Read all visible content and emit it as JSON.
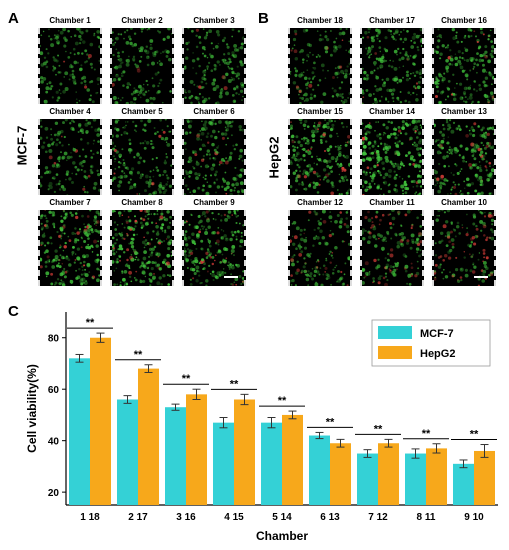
{
  "panels": {
    "a": {
      "letter": "A",
      "side_label": "MCF-7",
      "chambers": [
        "Chamber 1",
        "Chamber 2",
        "Chamber 3",
        "Chamber 4",
        "Chamber 5",
        "Chamber 6",
        "Chamber 7",
        "Chamber 8",
        "Chamber 9"
      ],
      "densities": [
        0.35,
        0.4,
        0.42,
        0.38,
        0.45,
        0.5,
        0.75,
        0.8,
        0.72
      ],
      "red_fraction": [
        0.02,
        0.02,
        0.03,
        0.03,
        0.04,
        0.05,
        0.12,
        0.15,
        0.14
      ]
    },
    "b": {
      "letter": "B",
      "side_label": "HepG2",
      "chambers": [
        "Chamber 18",
        "Chamber 17",
        "Chamber 16",
        "Chamber 15",
        "Chamber 14",
        "Chamber 13",
        "Chamber 12",
        "Chamber 11",
        "Chamber 10"
      ],
      "densities": [
        0.35,
        0.55,
        0.6,
        0.7,
        0.9,
        0.65,
        0.4,
        0.45,
        0.4
      ],
      "red_fraction": [
        0.06,
        0.06,
        0.07,
        0.08,
        0.06,
        0.1,
        0.25,
        0.22,
        0.28
      ]
    },
    "c": {
      "letter": "C"
    }
  },
  "colors": {
    "mcf7": "#34d1d6",
    "hepg2": "#f7a81b",
    "green_cell": "#3fbf3a",
    "red_cell": "#e0403a"
  },
  "chart_data": {
    "type": "bar",
    "categories": [
      "1 18",
      "2 17",
      "3 16",
      "4 15",
      "5 14",
      "6 13",
      "7 12",
      "8 11",
      "9 10"
    ],
    "series": [
      {
        "name": "MCF-7",
        "values": [
          72,
          56,
          53,
          47,
          47,
          42,
          35,
          35,
          31
        ],
        "errors": [
          1.5,
          1.5,
          1.2,
          2,
          2,
          1.2,
          1.5,
          1.8,
          1.5
        ]
      },
      {
        "name": "HepG2",
        "values": [
          80,
          68,
          58,
          56,
          50,
          39,
          39,
          37,
          36
        ],
        "errors": [
          1.8,
          1.5,
          2,
          2,
          1.5,
          1.5,
          1.5,
          1.8,
          2.5
        ]
      }
    ],
    "significance": [
      "**",
      "**",
      "**",
      "**",
      "**",
      "**",
      "**",
      "**",
      "**"
    ],
    "xlabel": "Chamber",
    "ylabel": "Cell viability(%)",
    "ylim": [
      15,
      90
    ],
    "yticks": [
      20,
      40,
      60,
      80
    ],
    "legend_position": "top-right",
    "grid": false
  }
}
